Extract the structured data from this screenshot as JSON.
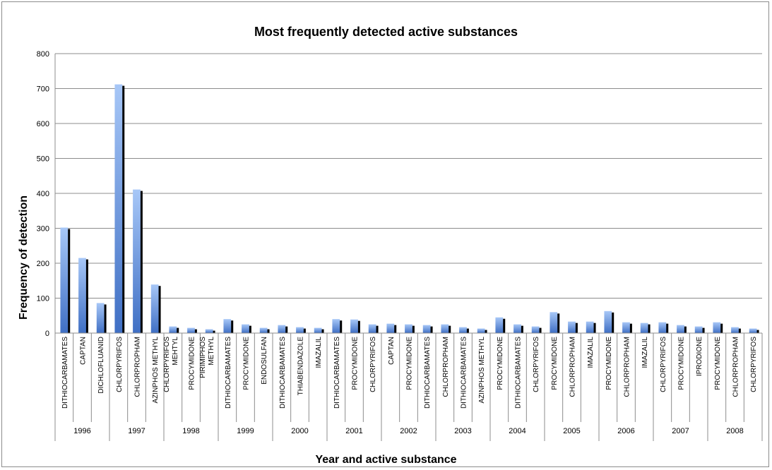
{
  "chart_data": {
    "type": "bar",
    "title": "Most frequently detected active substances",
    "xlabel": "Year and active substance",
    "ylabel": "Frequency of detection",
    "ylim": [
      0,
      800
    ],
    "yticks": [
      0,
      100,
      200,
      300,
      400,
      500,
      600,
      700,
      800
    ],
    "grid": true,
    "groups": [
      {
        "year": "1996",
        "items": [
          {
            "label": "DITHIOCARBAMATES",
            "value": 302
          },
          {
            "label": "CAPTAN",
            "value": 215
          },
          {
            "label": "DICHLOFLUANID",
            "value": 86
          }
        ]
      },
      {
        "year": "1997",
        "items": [
          {
            "label": "CHLORPYRIFOS",
            "value": 712
          },
          {
            "label": "CHLORPROPHAM",
            "value": 411
          },
          {
            "label": "AZINPHOS METHYL",
            "value": 139
          }
        ]
      },
      {
        "year": "1998",
        "items": [
          {
            "label": "CHLORPYRIFOS MEHTYL",
            "value": 19
          },
          {
            "label": "PROCYMIDONE",
            "value": 15
          },
          {
            "label": "PIRIMIPHOS METHYL",
            "value": 11
          }
        ]
      },
      {
        "year": "1999",
        "items": [
          {
            "label": "DITHIOCARBAMATES",
            "value": 40
          },
          {
            "label": "PROCYMIDONE",
            "value": 25
          },
          {
            "label": "ENDOSULFAN",
            "value": 15
          }
        ]
      },
      {
        "year": "2000",
        "items": [
          {
            "label": "DITHIOCARBAMATES",
            "value": 23
          },
          {
            "label": "THIABENDAZOLE",
            "value": 17
          },
          {
            "label": "IMAZALIL",
            "value": 15
          }
        ]
      },
      {
        "year": "2001",
        "items": [
          {
            "label": "DITHIOCARBAMATES",
            "value": 40
          },
          {
            "label": "PROCYMIDONE",
            "value": 39
          },
          {
            "label": "CHLORPYRIFOS",
            "value": 25
          }
        ]
      },
      {
        "year": "2002",
        "items": [
          {
            "label": "CAPTAN",
            "value": 27
          },
          {
            "label": "PROCYMIDONE",
            "value": 25
          },
          {
            "label": "DITHIOCARBAMATES",
            "value": 23
          }
        ]
      },
      {
        "year": "2003",
        "items": [
          {
            "label": "CHLORPROPHAM",
            "value": 25
          },
          {
            "label": "DITHIOCARBAMATES",
            "value": 17
          },
          {
            "label": "AZINPHOS METHYL",
            "value": 13
          }
        ]
      },
      {
        "year": "2004",
        "items": [
          {
            "label": "PROCYMIDONE",
            "value": 45
          },
          {
            "label": "DITHIOCARBAMATES",
            "value": 25
          },
          {
            "label": "CHLORPYRIFOS",
            "value": 19
          }
        ]
      },
      {
        "year": "2005",
        "items": [
          {
            "label": "PROCYMIDONE",
            "value": 60
          },
          {
            "label": "CHLORPROPHAM",
            "value": 33
          },
          {
            "label": "IMAZALIL",
            "value": 33
          }
        ]
      },
      {
        "year": "2006",
        "items": [
          {
            "label": "PROCYMIDONE",
            "value": 63
          },
          {
            "label": "CHLORPROPHAM",
            "value": 31
          },
          {
            "label": "IMAZALIL",
            "value": 29
          }
        ]
      },
      {
        "year": "2007",
        "items": [
          {
            "label": "CHLORPYRIFOS",
            "value": 31
          },
          {
            "label": "PROCYMIDONE",
            "value": 23
          },
          {
            "label": "IPRODIONE",
            "value": 19
          }
        ]
      },
      {
        "year": "2008",
        "items": [
          {
            "label": "PROCYMIDONE",
            "value": 31
          },
          {
            "label": "CHLORPROPHAM",
            "value": 17
          },
          {
            "label": "CHLORPYRIFOS",
            "value": 13
          }
        ]
      }
    ],
    "colors": {
      "bar_light": "#a7c7f7",
      "bar_dark": "#3f6fc4",
      "shadow": "#000000",
      "grid": "#8c8c8c"
    }
  }
}
